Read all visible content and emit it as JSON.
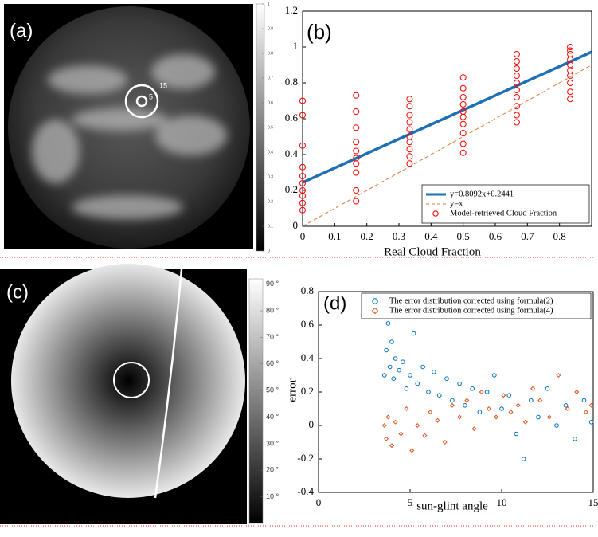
{
  "chart_data": [
    {
      "type": "image",
      "label": "(a)",
      "annotations": [
        "15",
        "5"
      ],
      "colorbar": {
        "lim": [
          0,
          1
        ],
        "ticks": [
          0,
          0.1,
          0.2,
          0.3,
          0.4,
          0.5,
          0.6,
          0.7,
          0.8,
          0.9,
          1
        ]
      }
    },
    {
      "type": "scatter",
      "label": "(b)",
      "xlabel": "Real Cloud Fraction",
      "xlim": [
        0,
        0.9
      ],
      "xticks": [
        0,
        0.1,
        0.2,
        0.3,
        0.4,
        0.5,
        0.6,
        0.7,
        0.8
      ],
      "ylim": [
        0,
        1.2
      ],
      "yticks": [
        0,
        0.2,
        0.4,
        0.6,
        0.8,
        1,
        1.2
      ],
      "legend": "lower right",
      "series": [
        {
          "name": "y=0.8092x+0.2441",
          "mode": "line",
          "color": "#1f6fb4",
          "x": [
            0,
            0.9
          ],
          "values": [
            0.2441,
            0.9724
          ]
        },
        {
          "name": "y=x",
          "mode": "dashed",
          "color": "#e07a3c",
          "x": [
            0,
            0.9
          ],
          "values": [
            0,
            0.9
          ]
        },
        {
          "name": "Model-retrieved Cloud Fraction",
          "mode": "markers",
          "marker": "circle",
          "color": "#ff0000",
          "x": [
            0,
            0,
            0,
            0,
            0,
            0,
            0,
            0,
            0,
            0,
            0.1667,
            0.1667,
            0.1667,
            0.1667,
            0.1667,
            0.1667,
            0.1667,
            0.1667,
            0.1667,
            0.1667,
            0.3333,
            0.3333,
            0.3333,
            0.3333,
            0.3333,
            0.3333,
            0.3333,
            0.3333,
            0.3333,
            0.3333,
            0.5,
            0.5,
            0.5,
            0.5,
            0.5,
            0.5,
            0.5,
            0.5,
            0.5,
            0.5,
            0.6667,
            0.6667,
            0.6667,
            0.6667,
            0.6667,
            0.6667,
            0.6667,
            0.6667,
            0.6667,
            0.6667,
            0.8333,
            0.8333,
            0.8333,
            0.8333,
            0.8333,
            0.8333,
            0.8333,
            0.8333,
            0.8333,
            0.8333
          ],
          "values": [
            0.09,
            0.13,
            0.17,
            0.2,
            0.24,
            0.28,
            0.33,
            0.45,
            0.62,
            0.7,
            0.14,
            0.2,
            0.3,
            0.35,
            0.38,
            0.42,
            0.47,
            0.55,
            0.64,
            0.73,
            0.35,
            0.39,
            0.43,
            0.47,
            0.5,
            0.54,
            0.58,
            0.62,
            0.67,
            0.71,
            0.41,
            0.46,
            0.52,
            0.57,
            0.61,
            0.64,
            0.68,
            0.72,
            0.77,
            0.83,
            0.58,
            0.62,
            0.67,
            0.72,
            0.76,
            0.8,
            0.84,
            0.88,
            0.92,
            0.96,
            0.71,
            0.75,
            0.8,
            0.84,
            0.87,
            0.9,
            0.93,
            0.96,
            0.98,
            1
          ]
        }
      ]
    },
    {
      "type": "image",
      "label": "(c)",
      "colorbar": {
        "lim": [
          0,
          92
        ],
        "ticks": [
          {
            "value": 10,
            "label": "10 °"
          },
          {
            "value": 20,
            "label": "20 °"
          },
          {
            "value": 30,
            "label": "30 °"
          },
          {
            "value": 40,
            "label": "40 °"
          },
          {
            "value": 50,
            "label": "50 °"
          },
          {
            "value": 60,
            "label": "60 °"
          },
          {
            "value": 70,
            "label": "70 °"
          },
          {
            "value": 80,
            "label": "80 °"
          },
          {
            "value": 90,
            "label": "90 °"
          }
        ]
      }
    },
    {
      "type": "scatter",
      "label": "(d)",
      "xlabel": "sun-glint angle",
      "ylabel": "error",
      "xlim": [
        0,
        15
      ],
      "xticks": [
        0,
        5,
        10,
        15
      ],
      "ylim": [
        -0.4,
        0.8
      ],
      "yticks": [
        -0.4,
        -0.2,
        0,
        0.2,
        0.4,
        0.6,
        0.8
      ],
      "legend": "upper right",
      "series": [
        {
          "name": "The error distribution corrected using formula(2)",
          "mode": "markers",
          "marker": "circle",
          "color": "#0072bd",
          "x": [
            3.6,
            3.7,
            3.8,
            3.9,
            4.0,
            4.1,
            4.2,
            4.4,
            4.6,
            4.8,
            5.0,
            5.2,
            5.4,
            5.7,
            6.0,
            6.3,
            6.6,
            7.0,
            7.3,
            7.7,
            8.0,
            8.4,
            8.8,
            9.2,
            9.6,
            10.0,
            10.4,
            10.8,
            11.2,
            11.6,
            12.0,
            12.5,
            13.0,
            13.5,
            14.0,
            14.5,
            14.9
          ],
          "values": [
            0.3,
            0.45,
            0.61,
            0.35,
            0.5,
            0.28,
            0.4,
            0.33,
            0.38,
            0.22,
            0.3,
            0.55,
            0.25,
            0.35,
            0.2,
            0.32,
            0.18,
            0.28,
            0.15,
            0.25,
            0.12,
            0.22,
            0.08,
            0.2,
            0.3,
            0.1,
            0.18,
            -0.05,
            -0.2,
            0.15,
            0.05,
            0.22,
            0,
            0.12,
            -0.08,
            0.15,
            0.02
          ]
        },
        {
          "name": "The error distribution corrected using formula(4)",
          "mode": "markers",
          "marker": "diamond",
          "color": "#d95319",
          "x": [
            3.6,
            3.7,
            3.8,
            4.0,
            4.2,
            4.5,
            4.8,
            5.1,
            5.4,
            5.8,
            6.1,
            6.5,
            6.9,
            7.3,
            7.7,
            8.1,
            8.5,
            8.9,
            9.3,
            9.7,
            10.1,
            10.5,
            10.9,
            11.3,
            11.7,
            12.1,
            12.6,
            13.1,
            13.6,
            14.1,
            14.6,
            14.9
          ],
          "values": [
            0,
            -0.08,
            0.05,
            -0.12,
            0.02,
            -0.05,
            0.1,
            -0.15,
            0,
            -0.06,
            0.08,
            0.03,
            -0.1,
            0.12,
            0.05,
            0.15,
            -0.02,
            0.2,
            0.1,
            0.05,
            0.18,
            0.08,
            0.12,
            0.02,
            0.22,
            0.15,
            0.05,
            0.3,
            0.1,
            0.2,
            0.08,
            0.12
          ]
        }
      ]
    }
  ]
}
